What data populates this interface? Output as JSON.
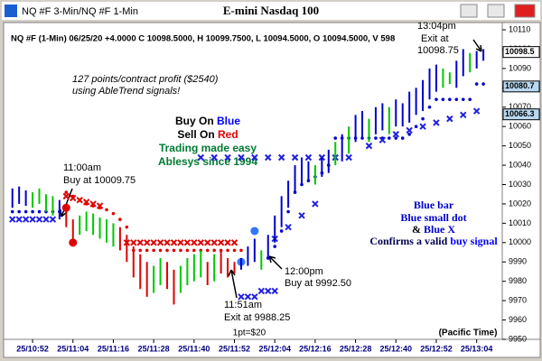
{
  "window_title": "NQ #F 3-Min/NQ #F 1-Min",
  "chart_data": {
    "type": "ohlc",
    "title": "E-mini Nasdaq 100",
    "info_line": "NQ #F (1-Min) 06/25/20 +4.0000 C 10098.5000, H 10099.7500, L 10094.5000, O 10094.5000, V 598",
    "colors": {
      "blue": "#0000cc",
      "green": "#00c800",
      "red": "#e00000"
    },
    "x": [
      646,
      648,
      650,
      652,
      654,
      656,
      658,
      660,
      662,
      664,
      666,
      668,
      670,
      672,
      674,
      676,
      678,
      680,
      682,
      684,
      686,
      688,
      690,
      692,
      694,
      696,
      698,
      700,
      702,
      704,
      706,
      708,
      710,
      712,
      714,
      716,
      718,
      720,
      722,
      724,
      726,
      728,
      730,
      732,
      734,
      736,
      738,
      740,
      742,
      744,
      746,
      748,
      750,
      752,
      754,
      756,
      758,
      760,
      762,
      764,
      766,
      768,
      770,
      772,
      774,
      776,
      778,
      780,
      782,
      784,
      786
    ],
    "high": [
      10028,
      10029,
      10027,
      10026,
      10028,
      10025,
      10024,
      10022,
      10020,
      10012,
      10014,
      10016,
      10015,
      10013,
      10012,
      10010,
      10008,
      10004,
      9998,
      9994,
      9990,
      9988,
      9992,
      9990,
      9986,
      9988,
      9992,
      9994,
      9996,
      9990,
      9994,
      9996,
      9992,
      9990,
      9992,
      9998,
      10002,
      9996,
      10004,
      10014,
      10024,
      10032,
      10040,
      10044,
      10042,
      10040,
      10044,
      10048,
      10052,
      10056,
      10060,
      10066,
      10068,
      10064,
      10070,
      10072,
      10070,
      10074,
      10072,
      10078,
      10080,
      10084,
      10090,
      10092,
      10090,
      10088,
      10094,
      10100,
      10098,
      10099,
      10100
    ],
    "low": [
      10018,
      10020,
      10019,
      10018,
      10020,
      10016,
      10014,
      10012,
      10008,
      10002,
      10004,
      10006,
      10004,
      10002,
      10000,
      9998,
      9996,
      9990,
      9982,
      9976,
      9972,
      9974,
      9978,
      9976,
      9968,
      9974,
      9978,
      9980,
      9982,
      9978,
      9980,
      9984,
      9982,
      9984,
      9986,
      9988,
      9990,
      9986,
      9992,
      10000,
      10008,
      10018,
      10026,
      10030,
      10032,
      10030,
      10034,
      10036,
      10040,
      10042,
      10046,
      10052,
      10054,
      10052,
      10056,
      10058,
      10056,
      10060,
      10060,
      10062,
      10066,
      10068,
      10074,
      10078,
      10080,
      10082,
      10080,
      10086,
      10088,
      10090,
      10094
    ],
    "bar_colors": [
      "blue",
      "blue",
      "blue",
      "green",
      "green",
      "green",
      "green",
      "blue",
      "red",
      "red",
      "green",
      "green",
      "green",
      "green",
      "green",
      "green",
      "red",
      "red",
      "red",
      "red",
      "red",
      "green",
      "green",
      "red",
      "red",
      "green",
      "green",
      "green",
      "green",
      "red",
      "green",
      "red",
      "red",
      "red",
      "blue",
      "blue",
      "blue",
      "green",
      "blue",
      "blue",
      "blue",
      "blue",
      "blue",
      "blue",
      "blue",
      "green",
      "blue",
      "blue",
      "green",
      "blue",
      "green",
      "blue",
      "blue",
      "green",
      "blue",
      "blue",
      "green",
      "blue",
      "blue",
      "blue",
      "blue",
      "blue",
      "blue",
      "blue",
      "green",
      "green",
      "blue",
      "blue",
      "green",
      "blue",
      "blue"
    ],
    "overlays": [
      {
        "marker": "dot",
        "color": "#0000cc",
        "x": [
          646,
          648,
          650,
          652,
          654,
          656,
          658,
          660,
          722,
          724,
          726,
          728,
          730,
          732,
          734,
          736,
          738,
          740,
          742,
          744,
          746,
          748,
          750,
          752,
          754,
          756,
          758,
          760,
          762,
          764,
          766,
          768,
          770,
          772,
          774,
          776,
          778,
          780,
          782,
          784,
          786
        ],
        "values": [
          10016,
          10016,
          10016,
          10016,
          10016,
          10016,
          10016,
          10016,
          9992,
          9998,
          10006,
          10016,
          10026,
          10030,
          10032,
          10034,
          10036,
          10040,
          10054,
          10054,
          10054,
          10054,
          10054,
          10054,
          10054,
          10054,
          10054,
          10054,
          10054,
          10056,
          10060,
          10064,
          10070,
          10074,
          10074,
          10074,
          10074,
          10074,
          10074,
          10082,
          10082
        ]
      },
      {
        "marker": "dot",
        "color": "#e00000",
        "x": [
          662,
          664,
          666,
          668,
          670,
          672,
          674,
          676,
          678,
          680,
          682,
          684,
          686,
          688,
          690,
          692,
          694,
          696,
          698,
          700,
          702,
          704,
          706,
          708,
          710,
          712,
          714
        ],
        "values": [
          10026,
          10024,
          10022,
          10020,
          10019,
          10018,
          10017,
          10015,
          10012,
          10008,
          9996,
          9996,
          9996,
          9996,
          9996,
          9996,
          9996,
          9996,
          9996,
          9996,
          9996,
          9996,
          9996,
          9996,
          9996,
          9996,
          9996
        ]
      },
      {
        "marker": "x",
        "color": "#2020e0",
        "x": [
          646,
          648,
          650,
          652,
          654,
          656,
          658,
          714,
          716,
          718,
          720,
          722,
          724,
          702,
          706,
          710,
          714,
          718,
          722,
          726,
          730,
          734,
          738,
          742,
          746,
          724,
          728,
          732,
          736,
          752,
          756,
          760,
          764,
          768,
          772,
          776,
          780,
          784
        ],
        "values": [
          10012,
          10012,
          10012,
          10012,
          10012,
          10012,
          10012,
          9972,
          9972,
          9972,
          9975,
          9975,
          9975,
          10044,
          10044,
          10044,
          10044,
          10044,
          10044,
          10044,
          10044,
          10044,
          10044,
          10044,
          10044,
          10002,
          10008,
          10014,
          10020,
          10050,
          10053,
          10056,
          10058,
          10060,
          10062,
          10064,
          10066,
          10068
        ]
      },
      {
        "marker": "x",
        "color": "#e00000",
        "x": [
          662,
          664,
          666,
          668,
          670,
          672,
          680,
          682,
          684,
          686,
          688,
          690,
          692,
          694,
          696,
          698,
          700,
          702,
          704,
          706,
          708,
          710,
          712
        ],
        "values": [
          10024,
          10023,
          10022,
          10021,
          10020,
          10019,
          10000,
          10000,
          10000,
          10000,
          10000,
          10000,
          10000,
          10000,
          10000,
          10000,
          10000,
          10000,
          10000,
          10000,
          10000,
          10000,
          10000
        ]
      },
      {
        "marker": "bigdot",
        "color": "#e00000",
        "x": [
          662,
          664
        ],
        "values": [
          10018,
          10000
        ]
      },
      {
        "marker": "bigdot",
        "color": "#3377ff",
        "x": [
          714,
          718
        ],
        "values": [
          9990,
          10006
        ]
      }
    ],
    "ylim": [
      9950,
      10110
    ],
    "yticks": [
      9950,
      9960,
      9970,
      9980,
      9990,
      10000,
      10010,
      10020,
      10030,
      10040,
      10050,
      10060,
      10070,
      10080,
      10090,
      10100,
      10110
    ],
    "xlim": [
      645,
      790
    ],
    "xticks": [
      {
        "value": 652,
        "label": "25/10:52"
      },
      {
        "value": 664,
        "label": "25/11:04"
      },
      {
        "value": 676,
        "label": "25/11:16"
      },
      {
        "value": 688,
        "label": "25/11:28"
      },
      {
        "value": 700,
        "label": "25/11:40"
      },
      {
        "value": 712,
        "label": "25/11:52"
      },
      {
        "value": 724,
        "label": "25/12:04"
      },
      {
        "value": 736,
        "label": "25/12:16"
      },
      {
        "value": 748,
        "label": "25/12:28"
      },
      {
        "value": 760,
        "label": "25/12:40"
      },
      {
        "value": 772,
        "label": "25/12:52"
      },
      {
        "value": 784,
        "label": "25/13:04"
      }
    ],
    "price_flags": [
      10098.5,
      10080.7,
      10066.3
    ],
    "grid": false,
    "annotations": {
      "profit_1": "127 points/contract profit ($2540)",
      "profit_2": "using AbleTrend signals!",
      "buy_on": "Buy On",
      "buy_blue": "Blue",
      "sell_on": "Sell On",
      "sell_red": "Red",
      "easy": "Trading made easy",
      "since": "Ablesys since 1994",
      "entry1_time": "11:00am",
      "entry1_text": "Buy at 10009.75",
      "exit1_time": "11:51am",
      "exit1_text": "Exit at 9988.25",
      "entry2_time": "12:00pm",
      "entry2_text": "Buy at 9992.50",
      "exit2_time": "13:04pm",
      "exit2_text": "Exit at",
      "exit2_price": "10098.75",
      "rule_1": "Blue bar",
      "rule_2": "Blue small dot",
      "rule_3a": "&",
      "rule_3b": "Blue X",
      "rule_4a": "Confirms a valid",
      "rule_4b": "buy signal",
      "point_value": "1pt=$20",
      "timezone": "(Pacific Time)"
    }
  }
}
